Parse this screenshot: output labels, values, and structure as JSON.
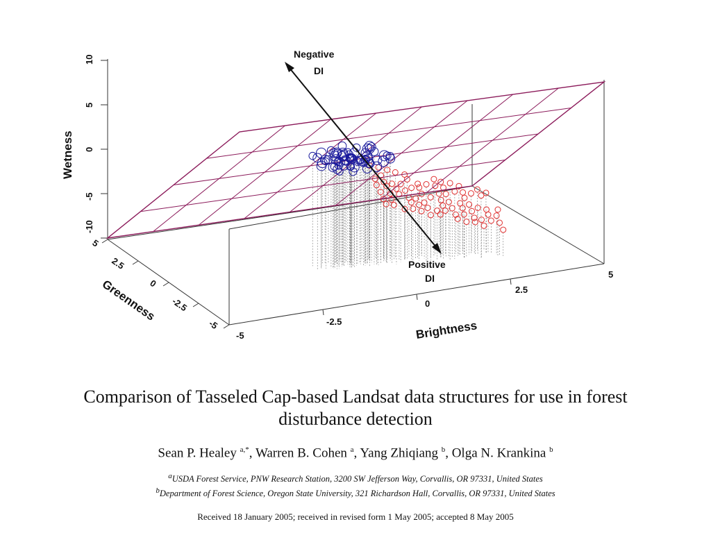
{
  "chart_data": {
    "type": "scatter",
    "title": "",
    "axes": {
      "brightness": {
        "label": "Brightness",
        "ticks": [
          "-5",
          "-2.5",
          "0",
          "2.5",
          "5"
        ],
        "range": [
          -5,
          5
        ]
      },
      "greenness": {
        "label": "Greenness",
        "ticks": [
          "5",
          "2.5",
          "0",
          "-2.5",
          "-5"
        ],
        "range": [
          -5,
          5
        ]
      },
      "wetness": {
        "label": "Wetness",
        "ticks": [
          "-10",
          "-5",
          "0",
          "5",
          "10"
        ],
        "range": [
          -10,
          10
        ]
      }
    },
    "annotations": {
      "negative_di": {
        "line1": "Negative",
        "line2": "DI"
      },
      "positive_di": {
        "line1": "Positive",
        "line2": "DI"
      }
    },
    "series": [
      {
        "color": "#1a1a9c",
        "marker": "circle"
      },
      {
        "color": "#e03030",
        "marker": "circle"
      }
    ],
    "plane_color": "#8b1a5a"
  },
  "paper": {
    "title": "Comparison of Tasseled Cap-based Landsat data structures for use in forest disturbance detection",
    "authors": [
      {
        "name": "Sean P. Healey",
        "sup": "a,*"
      },
      {
        "name": "Warren B. Cohen",
        "sup": "a"
      },
      {
        "name": "Yang Zhiqiang",
        "sup": "b"
      },
      {
        "name": "Olga N. Krankina",
        "sup": "b"
      }
    ],
    "affiliations": [
      {
        "sup": "a",
        "text": "USDA Forest Service, PNW Research Station, 3200 SW Jefferson Way, Corvallis, OR 97331, United States"
      },
      {
        "sup": "b",
        "text": "Department of Forest Science, Oregon State University, 321 Richardson Hall, Corvallis, OR 97331, United States"
      }
    ],
    "received": "Received 18 January 2005; received in revised form 1 May 2005; accepted 8 May 2005"
  }
}
